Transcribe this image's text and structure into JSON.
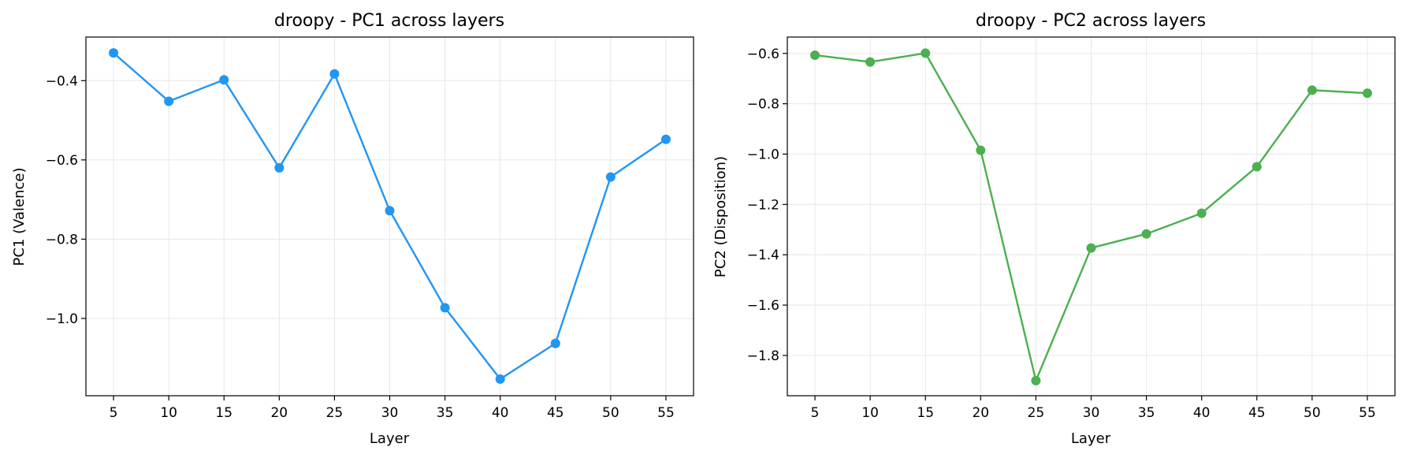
{
  "chart_data": [
    {
      "type": "line",
      "title": "droopy - PC1 across layers",
      "xlabel": "Layer",
      "ylabel": "PC1 (Valence)",
      "x": [
        5,
        10,
        15,
        20,
        25,
        30,
        35,
        40,
        45,
        50,
        55
      ],
      "xticks": [
        5,
        10,
        15,
        20,
        25,
        30,
        35,
        40,
        45,
        50,
        55
      ],
      "yticks": [
        -0.4,
        -0.6,
        -0.8,
        -1.0
      ],
      "ytick_labels": [
        "−0.4",
        "−0.6",
        "−0.8",
        "−1.0"
      ],
      "xlim": [
        2.5,
        57.5
      ],
      "ylim": [
        -1.195,
        -0.29
      ],
      "grid": true,
      "series": [
        {
          "color": "#2196F3",
          "values": [
            -0.33,
            -0.452,
            -0.398,
            -0.62,
            -0.383,
            -0.728,
            -0.973,
            -1.153,
            -1.063,
            -0.643,
            -0.548
          ]
        }
      ]
    },
    {
      "type": "line",
      "title": "droopy - PC2 across layers",
      "xlabel": "Layer",
      "ylabel": "PC2 (Disposition)",
      "x": [
        5,
        10,
        15,
        20,
        25,
        30,
        35,
        40,
        45,
        50,
        55
      ],
      "xticks": [
        5,
        10,
        15,
        20,
        25,
        30,
        35,
        40,
        45,
        50,
        55
      ],
      "yticks": [
        -0.6,
        -0.8,
        -1.0,
        -1.2,
        -1.4,
        -1.6,
        -1.8
      ],
      "ytick_labels": [
        "−0.6",
        "−0.8",
        "−1.0",
        "−1.2",
        "−1.4",
        "−1.6",
        "−1.8"
      ],
      "xlim": [
        2.5,
        57.5
      ],
      "ylim": [
        -1.96,
        -0.535
      ],
      "grid": true,
      "series": [
        {
          "color": "#4CAF50",
          "values": [
            -0.607,
            -0.634,
            -0.599,
            -0.985,
            -1.9,
            -1.373,
            -1.317,
            -1.235,
            -1.05,
            -0.746,
            -0.758
          ]
        }
      ]
    }
  ]
}
